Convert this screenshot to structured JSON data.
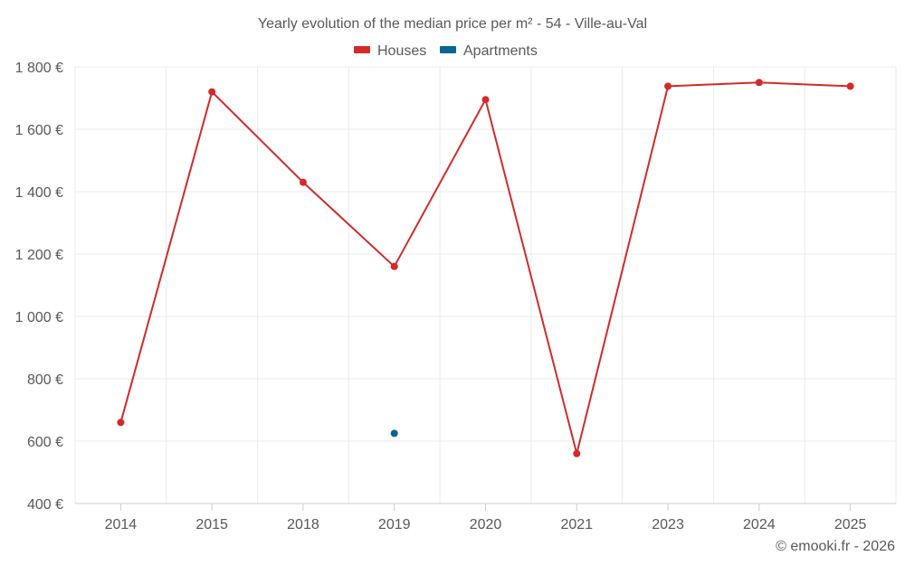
{
  "chart_data": {
    "type": "line",
    "title": "Yearly evolution of the median price per m² - 54 - Ville-au-Val",
    "categories": [
      "2014",
      "2015",
      "2018",
      "2019",
      "2020",
      "2021",
      "2023",
      "2024",
      "2025"
    ],
    "y_tick_labels": [
      "400 €",
      "600 €",
      "800 €",
      "1 000 €",
      "1 200 €",
      "1 400 €",
      "1 600 €",
      "1 800 €"
    ],
    "y_ticks": [
      400,
      600,
      800,
      1000,
      1200,
      1400,
      1600,
      1800
    ],
    "ylim": [
      400,
      1800
    ],
    "grid": true,
    "legend_position": "top-center",
    "series": [
      {
        "name": "Houses",
        "color": "#d32a2a",
        "values": [
          660,
          1720,
          1430,
          1160,
          1695,
          560,
          1738,
          1750,
          1738
        ]
      },
      {
        "name": "Apartments",
        "color": "#0a6496",
        "values": [
          null,
          null,
          null,
          625,
          null,
          null,
          null,
          null,
          null
        ]
      }
    ],
    "credit": "© emooki.fr - 2026"
  }
}
